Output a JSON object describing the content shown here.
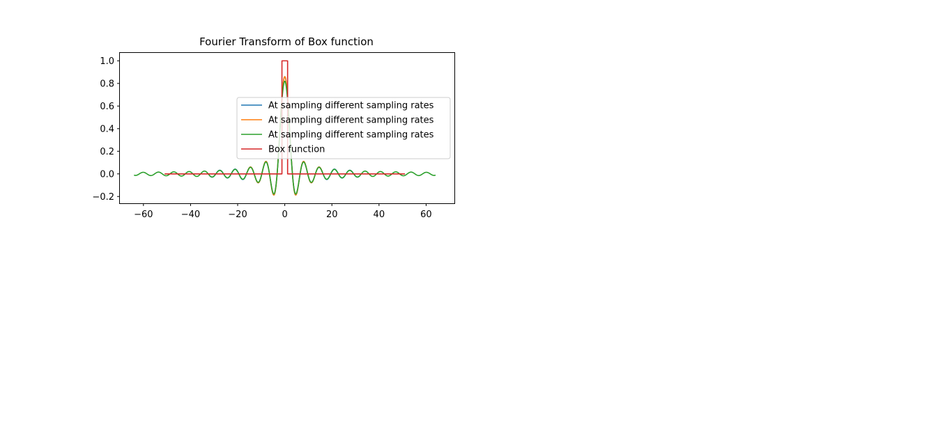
{
  "chart_data": {
    "type": "line",
    "title": "Fourier Transform of Box function",
    "xlabel": "",
    "ylabel": "",
    "xlim": [
      -70,
      72
    ],
    "ylim": [
      -0.26,
      1.07
    ],
    "xticks": [
      -60,
      -40,
      -20,
      0,
      20,
      40,
      60
    ],
    "xtick_labels": [
      "−60",
      "−40",
      "−20",
      "0",
      "20",
      "40",
      "60"
    ],
    "yticks": [
      -0.2,
      0.0,
      0.2,
      0.4,
      0.6,
      0.8,
      1.0
    ],
    "ytick_labels": [
      "−0.2",
      "0.0",
      "0.2",
      "0.4",
      "0.6",
      "0.8",
      "1.0"
    ],
    "grid": false,
    "legend_position": "center-right",
    "series": [
      {
        "name": "At sampling different sampling rates",
        "color": "#1f77b4",
        "kind": "sinc",
        "x_range": [
          -32,
          32
        ],
        "peak": 0.86,
        "period": 6.5,
        "first_zero": 3.25
      },
      {
        "name": "At sampling different sampling rates",
        "color": "#ff7f0e",
        "kind": "sinc",
        "x_range": [
          -16,
          16
        ],
        "peak": 0.86,
        "period": 6.5,
        "first_zero": 3.25
      },
      {
        "name": "At sampling different sampling rates",
        "color": "#2ca02c",
        "kind": "sinc",
        "x_range": [
          -64,
          64
        ],
        "peak": 0.82,
        "period": 6.5,
        "first_zero": 3.25
      },
      {
        "name": "Box function",
        "color": "#d62728",
        "kind": "step",
        "x": [
          -51,
          -1.2,
          -1.2,
          1.2,
          1.2,
          51
        ],
        "y": [
          0,
          0,
          1,
          1,
          0,
          0
        ]
      }
    ]
  }
}
